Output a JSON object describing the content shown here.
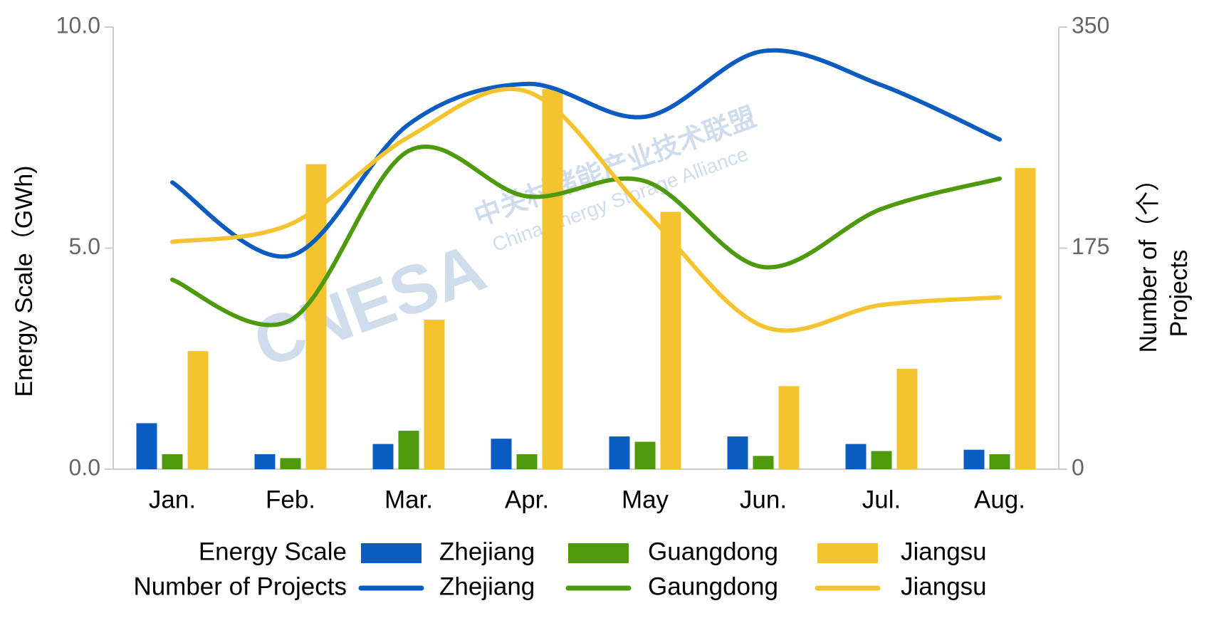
{
  "chart_data": {
    "type": "bar",
    "ylabel": "Energy Scale（GWh)",
    "y2label": [
      "Number of（个）",
      "Projects"
    ],
    "categories": [
      "Jan.",
      "Feb.",
      "Mar.",
      "Apr.",
      "May",
      "Jun.",
      "Jul.",
      "Aug."
    ],
    "legend_titles": [
      "Energy Scale",
      "Number of Projects"
    ],
    "series": [
      {
        "name": "Zhejiang",
        "type": "bar",
        "color": "#0b5cc0",
        "values": [
          1.04,
          0.34,
          0.57,
          0.69,
          0.74,
          0.74,
          0.57,
          0.44
        ]
      },
      {
        "name": "Guangdong",
        "type": "bar",
        "color": "#4e9a0c",
        "values": [
          0.34,
          0.25,
          0.87,
          0.34,
          0.62,
          0.3,
          0.41,
          0.34
        ]
      },
      {
        "name": "Jiangsu",
        "type": "bar",
        "color": "#f4c430",
        "values": [
          2.67,
          6.9,
          3.38,
          8.6,
          5.82,
          1.88,
          2.27,
          6.81
        ]
      },
      {
        "name": "Zhejiang",
        "type": "line",
        "axis": "y2",
        "color": "#0b5cc0",
        "values": [
          227,
          169,
          273,
          305,
          279,
          331,
          304,
          261
        ]
      },
      {
        "name": "Gaungdong",
        "type": "line",
        "axis": "y2",
        "color": "#4e9a0c",
        "values": [
          150,
          118,
          252,
          216,
          228,
          160,
          206,
          230
        ]
      },
      {
        "name": "Jiangsu",
        "type": "line",
        "axis": "y2",
        "color": "#f4c430",
        "values": [
          180,
          194,
          263,
          299,
          204,
          113,
          130,
          136
        ]
      }
    ],
    "ylim": [
      0,
      10
    ],
    "yticks": [
      {
        "value": 0,
        "label": "0.0"
      },
      {
        "value": 5,
        "label": "5.0"
      },
      {
        "value": 10,
        "label": "10.0"
      }
    ],
    "y2lim": [
      0,
      350
    ],
    "y2ticks": [
      0,
      175,
      350
    ],
    "watermark": [
      "CNESA",
      "中关村储能产业技术联盟",
      "China Energy Storage Alliance"
    ]
  }
}
